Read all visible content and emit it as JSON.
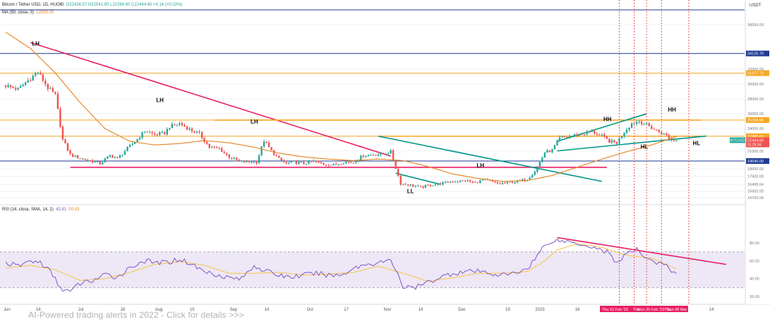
{
  "legend": {
    "symbol": "Bitcoin / Tether USD, 1D, HUOBI",
    "ohlc": "O22436.57 H22541.90 L22269.60 C22444.60 +4.16 (+0.02%)",
    "ma": "MA (50, close, 0)",
    "ma_value": "22950.05",
    "rsi": "RSI (14, close, SMA, 14, 2)",
    "rsi_value": "43.81",
    "rsi_sma_value": "50.83"
  },
  "currency": "USDT",
  "footer_text": "AI-Powered trading alerts in 2022 - Click for details >>>",
  "colors": {
    "up": "#26a69a",
    "down": "#ef5350",
    "ma": "#e68a2e",
    "trendline": "#e91e63",
    "channel": "#009688",
    "level_blue": "#1f3a93",
    "level_orange": "#f5a623",
    "rsi_line": "#7e57c2",
    "rsi_sma": "#f5c542"
  },
  "price_badges": {
    "mid_label": "BTCUSDT",
    "mid_value": "22444.60",
    "mid_sub": "01:26:34"
  },
  "date_badges": [
    "Thu 02 Feb '23",
    "Thu",
    "Mon 20 Feb '23",
    "Thu",
    "Sun 05 Mar '23"
  ],
  "chart_data": {
    "type": "candlestick",
    "title": "Bitcoin / Tether USD, 1D, HUOBI",
    "x_ticks": [
      "Jun",
      "14",
      "Jul",
      "18",
      "Aug",
      "15",
      "Sep",
      "14",
      "Oct",
      "17",
      "Nov",
      "14",
      "Dec",
      "19",
      "2023",
      "16",
      "14"
    ],
    "price_ticks": [
      {
        "value": 38000,
        "label": "38000.00"
      },
      {
        "value": 34126.7,
        "label": "34126.70"
      },
      {
        "value": 32000,
        "label": "32000.00"
      },
      {
        "value": 31477.73,
        "label": "31477.73"
      },
      {
        "value": 30000,
        "label": "30000.00"
      },
      {
        "value": 28000,
        "label": "28000.00"
      },
      {
        "value": 26000,
        "label": "26000.00"
      },
      {
        "value": 25158.66,
        "label": "25158.66"
      },
      {
        "value": 24000,
        "label": "24000.00"
      },
      {
        "value": 22985.63,
        "label": "22985.63"
      },
      {
        "value": 21000,
        "label": "21000.00"
      },
      {
        "value": 19640,
        "label": "19640.00"
      },
      {
        "value": 18600,
        "label": "18600.00"
      },
      {
        "value": 17600,
        "label": "17600.00"
      },
      {
        "value": 16495.64,
        "label": "16495.64"
      },
      {
        "value": 15600,
        "label": "15600.00"
      },
      {
        "value": 14700,
        "label": "14700.00"
      }
    ],
    "rsi_ticks": [
      80,
      60,
      40,
      20
    ],
    "rsi_bands": {
      "upper": 70,
      "lower": 30
    },
    "horizontal_levels": [
      {
        "value": 40000,
        "color": "blue"
      },
      {
        "value": 34126.7,
        "color": "blue"
      },
      {
        "value": 31477.73,
        "color": "orange"
      },
      {
        "value": 25158.66,
        "color": "orange"
      },
      {
        "value": 22985.63,
        "color": "orange"
      },
      {
        "value": 19640,
        "color": "blue"
      }
    ],
    "annotations": [
      {
        "text": "LH",
        "date_index": 12,
        "price": 35200
      },
      {
        "text": "LH",
        "date_index": 62,
        "price": 27600
      },
      {
        "text": "LH",
        "date_index": 100,
        "price": 24700
      },
      {
        "text": "LH",
        "date_index": 191,
        "price": 18800
      },
      {
        "text": "LL",
        "date_index": 163,
        "price": 15300
      },
      {
        "text": "HH",
        "date_index": 242,
        "price": 25000
      },
      {
        "text": "HH",
        "date_index": 268,
        "price": 26300
      },
      {
        "text": "HL",
        "date_index": 257,
        "price": 21300
      },
      {
        "text": "HL",
        "date_index": 278,
        "price": 21800
      }
    ],
    "series": [
      {
        "name": "BTCUSDT",
        "type": "candlestick",
        "anchors": [
          [
            0,
            29800
          ],
          [
            5,
            29300
          ],
          [
            10,
            30800
          ],
          [
            13,
            31600
          ],
          [
            17,
            29500
          ],
          [
            20,
            28500
          ],
          [
            23,
            22500
          ],
          [
            26,
            20500
          ],
          [
            30,
            20000
          ],
          [
            35,
            19600
          ],
          [
            38,
            19300
          ],
          [
            42,
            20400
          ],
          [
            45,
            20000
          ],
          [
            48,
            21000
          ],
          [
            53,
            22600
          ],
          [
            56,
            23700
          ],
          [
            60,
            23200
          ],
          [
            64,
            23400
          ],
          [
            66,
            24300
          ],
          [
            70,
            24700
          ],
          [
            74,
            23900
          ],
          [
            78,
            23300
          ],
          [
            82,
            21500
          ],
          [
            86,
            21300
          ],
          [
            90,
            20200
          ],
          [
            94,
            19600
          ],
          [
            98,
            19500
          ],
          [
            101,
            19500
          ],
          [
            104,
            22400
          ],
          [
            107,
            21000
          ],
          [
            110,
            19900
          ],
          [
            113,
            19300
          ],
          [
            116,
            19500
          ],
          [
            120,
            19300
          ],
          [
            124,
            19600
          ],
          [
            128,
            19200
          ],
          [
            132,
            19100
          ],
          [
            136,
            19500
          ],
          [
            140,
            19500
          ],
          [
            144,
            20400
          ],
          [
            148,
            20500
          ],
          [
            152,
            20600
          ],
          [
            155,
            20900
          ],
          [
            157,
            18700
          ],
          [
            159,
            16600
          ],
          [
            163,
            16400
          ],
          [
            167,
            16100
          ],
          [
            171,
            16400
          ],
          [
            175,
            16600
          ],
          [
            180,
            16900
          ],
          [
            185,
            17000
          ],
          [
            189,
            16700
          ],
          [
            192,
            17100
          ],
          [
            195,
            16900
          ],
          [
            198,
            16600
          ],
          [
            202,
            16700
          ],
          [
            206,
            16900
          ],
          [
            210,
            17200
          ],
          [
            213,
            18300
          ],
          [
            215,
            19500
          ],
          [
            217,
            20800
          ],
          [
            220,
            21100
          ],
          [
            223,
            22700
          ],
          [
            227,
            23000
          ],
          [
            232,
            23300
          ],
          [
            236,
            23600
          ],
          [
            240,
            23000
          ],
          [
            243,
            22300
          ],
          [
            246,
            22100
          ],
          [
            249,
            23600
          ],
          [
            252,
            24700
          ],
          [
            255,
            25000
          ],
          [
            258,
            24500
          ],
          [
            262,
            23700
          ],
          [
            266,
            23100
          ],
          [
            268,
            22500
          ],
          [
            270,
            22444.6
          ]
        ]
      },
      {
        "name": "MA (50, close, 0)",
        "type": "line",
        "anchors": [
          [
            0,
            37000
          ],
          [
            10,
            34800
          ],
          [
            20,
            31500
          ],
          [
            30,
            27500
          ],
          [
            40,
            24000
          ],
          [
            50,
            22300
          ],
          [
            60,
            21800
          ],
          [
            70,
            22000
          ],
          [
            80,
            22400
          ],
          [
            90,
            22100
          ],
          [
            100,
            21500
          ],
          [
            110,
            20700
          ],
          [
            120,
            20200
          ],
          [
            130,
            19900
          ],
          [
            140,
            19700
          ],
          [
            150,
            19900
          ],
          [
            160,
            19700
          ],
          [
            170,
            18900
          ],
          [
            180,
            17900
          ],
          [
            190,
            17300
          ],
          [
            200,
            16900
          ],
          [
            210,
            17000
          ],
          [
            220,
            17700
          ],
          [
            230,
            18800
          ],
          [
            240,
            19900
          ],
          [
            250,
            20900
          ],
          [
            260,
            21800
          ],
          [
            270,
            22950.05
          ]
        ]
      },
      {
        "name": "RSI (14, close, SMA, 14, 2)",
        "type": "line",
        "anchors": [
          [
            0,
            58
          ],
          [
            5,
            54
          ],
          [
            10,
            60
          ],
          [
            14,
            58
          ],
          [
            18,
            48
          ],
          [
            22,
            30
          ],
          [
            26,
            25
          ],
          [
            30,
            35
          ],
          [
            35,
            38
          ],
          [
            40,
            44
          ],
          [
            45,
            42
          ],
          [
            50,
            52
          ],
          [
            55,
            60
          ],
          [
            60,
            58
          ],
          [
            65,
            58
          ],
          [
            70,
            62
          ],
          [
            75,
            56
          ],
          [
            80,
            48
          ],
          [
            85,
            45
          ],
          [
            90,
            41
          ],
          [
            95,
            40
          ],
          [
            100,
            55
          ],
          [
            105,
            48
          ],
          [
            110,
            44
          ],
          [
            115,
            42
          ],
          [
            120,
            44
          ],
          [
            125,
            46
          ],
          [
            130,
            44
          ],
          [
            135,
            44
          ],
          [
            140,
            52
          ],
          [
            145,
            56
          ],
          [
            150,
            58
          ],
          [
            155,
            60
          ],
          [
            158,
            46
          ],
          [
            160,
            30
          ],
          [
            165,
            30
          ],
          [
            170,
            36
          ],
          [
            175,
            42
          ],
          [
            180,
            46
          ],
          [
            185,
            48
          ],
          [
            190,
            48
          ],
          [
            195,
            46
          ],
          [
            200,
            44
          ],
          [
            205,
            46
          ],
          [
            210,
            52
          ],
          [
            213,
            62
          ],
          [
            216,
            74
          ],
          [
            220,
            83
          ],
          [
            225,
            82
          ],
          [
            230,
            80
          ],
          [
            236,
            76
          ],
          [
            242,
            70
          ],
          [
            246,
            58
          ],
          [
            250,
            68
          ],
          [
            254,
            72
          ],
          [
            258,
            64
          ],
          [
            262,
            58
          ],
          [
            266,
            54
          ],
          [
            270,
            43.81
          ]
        ]
      },
      {
        "name": "RSI SMA",
        "type": "line",
        "anchors": [
          [
            0,
            52
          ],
          [
            10,
            55
          ],
          [
            20,
            50
          ],
          [
            30,
            38
          ],
          [
            40,
            40
          ],
          [
            50,
            47
          ],
          [
            60,
            56
          ],
          [
            70,
            59
          ],
          [
            80,
            55
          ],
          [
            90,
            46
          ],
          [
            100,
            46
          ],
          [
            110,
            47
          ],
          [
            120,
            44
          ],
          [
            130,
            45
          ],
          [
            140,
            47
          ],
          [
            150,
            54
          ],
          [
            160,
            46
          ],
          [
            170,
            37
          ],
          [
            180,
            41
          ],
          [
            190,
            46
          ],
          [
            200,
            46
          ],
          [
            210,
            48
          ],
          [
            216,
            58
          ],
          [
            222,
            72
          ],
          [
            230,
            79
          ],
          [
            240,
            75
          ],
          [
            250,
            66
          ],
          [
            260,
            63
          ],
          [
            270,
            50.83
          ]
        ]
      }
    ],
    "trendlines": [
      {
        "color": "trendline",
        "from": [
          10,
          35600
        ],
        "to": [
          155,
          20300
        ]
      },
      {
        "color": "trendline",
        "from": [
          26,
          18800
        ],
        "to": [
          242,
          18800
        ]
      },
      {
        "color": "orange",
        "from": [
          84,
          25158.66
        ],
        "to": [
          280,
          25158.66
        ]
      },
      {
        "color": "orange",
        "from": [
          150,
          22985.63
        ],
        "to": [
          280,
          22985.63
        ]
      },
      {
        "color": "channel",
        "from": [
          150,
          22985.63
        ],
        "to": [
          240,
          16900
        ]
      },
      {
        "color": "channel",
        "from": [
          157,
          18000
        ],
        "to": [
          175,
          16500
        ]
      },
      {
        "color": "channel",
        "from": [
          222,
          22300
        ],
        "to": [
          258,
          26000
        ]
      },
      {
        "color": "channel",
        "from": [
          222,
          21000
        ],
        "to": [
          282,
          23000
        ]
      }
    ],
    "rsi_trendline": {
      "from": [
        222,
        86
      ],
      "to": [
        290,
        56
      ]
    },
    "vertical_markers": [
      247,
      253,
      258,
      264,
      275
    ]
  }
}
